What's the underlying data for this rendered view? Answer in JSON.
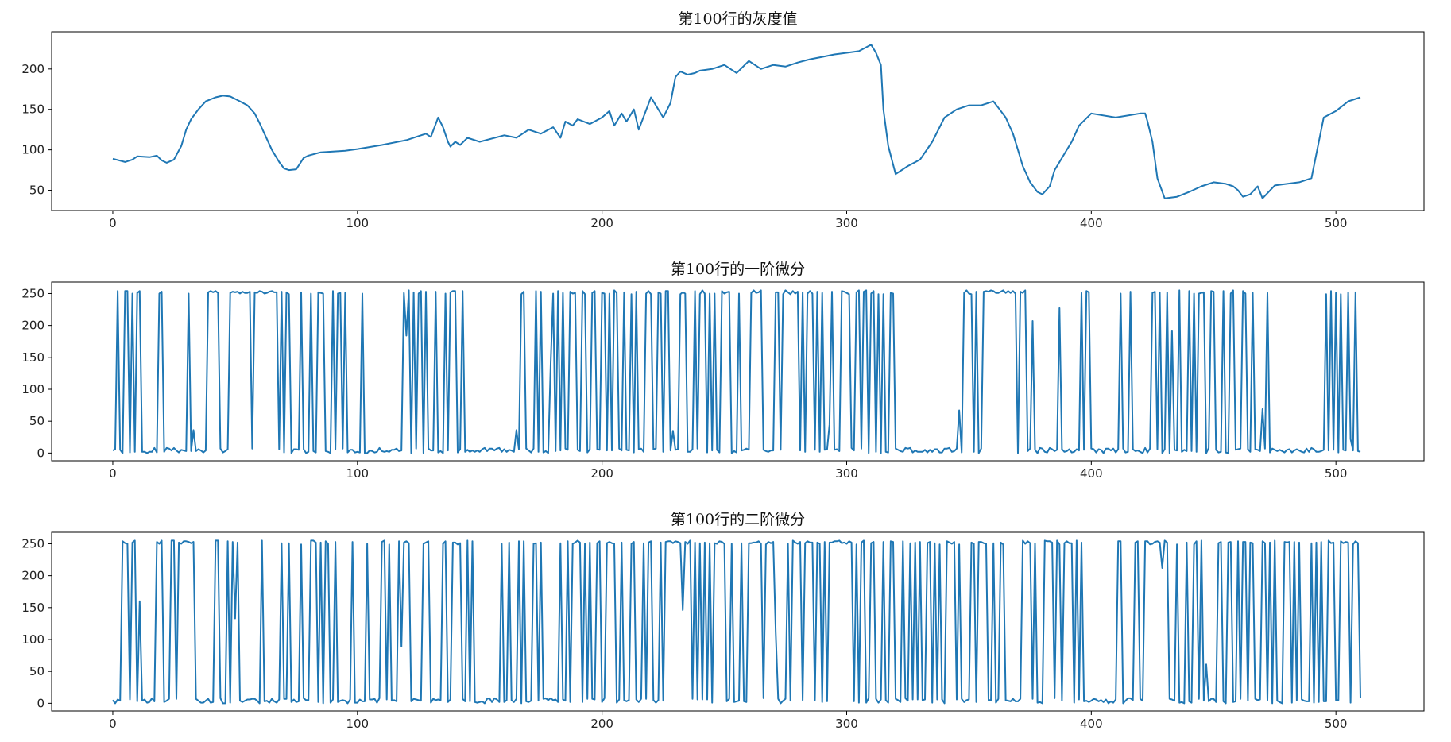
{
  "chart_data": [
    {
      "type": "line",
      "title": "第100行的灰度值",
      "xlabel": "",
      "ylabel": "",
      "xlim": [
        -25,
        536
      ],
      "ylim": [
        25,
        246
      ],
      "xticks": [
        0,
        100,
        200,
        300,
        400,
        500
      ],
      "yticks": [
        50,
        100,
        150,
        200
      ],
      "color": "#1f77b4",
      "series": [
        {
          "x": [
            0,
            5,
            8,
            10,
            15,
            18,
            20,
            22,
            25,
            28,
            30,
            32,
            35,
            38,
            42,
            45,
            48,
            50,
            52,
            55,
            58,
            60,
            62,
            65,
            68,
            70,
            72,
            75,
            78,
            80,
            85,
            90,
            95,
            100,
            110,
            120,
            125,
            128,
            130,
            133,
            135,
            137,
            138,
            140,
            142,
            145,
            150,
            160,
            165,
            170,
            175,
            180,
            183,
            185,
            188,
            190,
            195,
            200,
            203,
            205,
            208,
            210,
            213,
            215,
            220,
            225,
            228,
            230,
            232,
            235,
            238,
            240,
            245,
            250,
            255,
            260,
            265,
            270,
            275,
            280,
            285,
            290,
            295,
            300,
            305,
            310,
            312,
            314,
            315,
            317,
            320,
            325,
            330,
            335,
            340,
            345,
            350,
            355,
            360,
            362,
            365,
            368,
            370,
            372,
            375,
            378,
            380,
            383,
            385,
            390,
            392,
            395,
            400,
            410,
            420,
            422,
            423,
            425,
            427,
            430,
            435,
            440,
            445,
            450,
            455,
            458,
            460,
            462,
            465,
            468,
            470,
            475,
            480,
            485,
            490,
            495,
            500,
            505,
            510
          ],
          "y": [
            89,
            85,
            88,
            92,
            91,
            93,
            87,
            84,
            88,
            105,
            125,
            138,
            150,
            160,
            165,
            167,
            166,
            163,
            160,
            155,
            145,
            133,
            120,
            100,
            85,
            77,
            75,
            76,
            90,
            93,
            97,
            98,
            99,
            101,
            106,
            112,
            117,
            120,
            116,
            140,
            128,
            110,
            104,
            110,
            106,
            115,
            110,
            118,
            115,
            125,
            120,
            128,
            115,
            135,
            130,
            138,
            132,
            140,
            148,
            130,
            145,
            135,
            150,
            125,
            165,
            140,
            158,
            190,
            197,
            193,
            195,
            198,
            200,
            205,
            195,
            210,
            200,
            205,
            203,
            208,
            212,
            215,
            218,
            220,
            222,
            230,
            220,
            205,
            150,
            105,
            70,
            80,
            88,
            110,
            140,
            150,
            155,
            155,
            160,
            152,
            140,
            120,
            100,
            80,
            60,
            48,
            45,
            55,
            75,
            100,
            110,
            130,
            145,
            140,
            145,
            145,
            135,
            110,
            65,
            40,
            42,
            48,
            55,
            60,
            58,
            55,
            50,
            42,
            45,
            55,
            40,
            56,
            58,
            60,
            65,
            140,
            148,
            160,
            165
          ]
        }
      ]
    },
    {
      "type": "line",
      "title": "第100行的一阶微分",
      "xlabel": "",
      "ylabel": "",
      "xlim": [
        -25,
        536
      ],
      "ylim": [
        -12,
        268
      ],
      "xticks": [
        0,
        100,
        200,
        300,
        400,
        500
      ],
      "yticks": [
        0,
        50,
        100,
        150,
        200,
        250
      ],
      "color": "#1f77b4"
    },
    {
      "type": "line",
      "title": "第100行的二阶微分",
      "xlabel": "",
      "ylabel": "",
      "xlim": [
        -25,
        536
      ],
      "ylim": [
        -12,
        268
      ],
      "xticks": [
        0,
        100,
        200,
        300,
        400,
        500
      ],
      "yticks": [
        0,
        50,
        100,
        150,
        200,
        250
      ],
      "color": "#1f77b4"
    }
  ]
}
